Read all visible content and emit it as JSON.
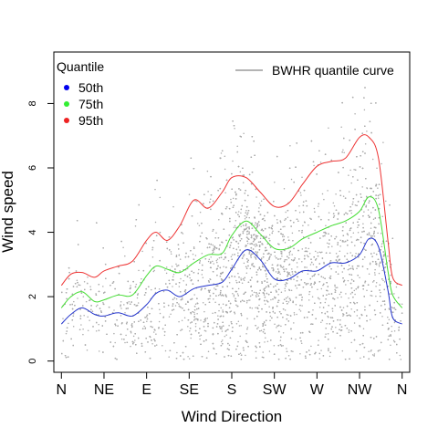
{
  "chart_data": {
    "type": "scatter",
    "title": "",
    "xlabel": "Wind Direction",
    "ylabel": "Wind speed",
    "x_tick_labels": [
      "N",
      "NE",
      "E",
      "SE",
      "S",
      "SW",
      "W",
      "NW",
      "N"
    ],
    "x_tick_positions": [
      0,
      45,
      90,
      135,
      180,
      225,
      270,
      315,
      360
    ],
    "xlim": [
      -8,
      368
    ],
    "y_ticks": [
      0,
      2,
      4,
      6,
      8
    ],
    "y_tick_labels": [
      "0",
      "2",
      "4",
      "6",
      "8"
    ],
    "ylim": [
      -0.35,
      9.6
    ],
    "grid": false,
    "scatter": {
      "color": "#aaaaaa",
      "description": "Dense cloud of individual observations (wind speed vs. direction)"
    },
    "legend_quantile": {
      "title": "Quantile",
      "placement": "top-left",
      "entries": [
        {
          "label": "50th",
          "color": "#0000ee"
        },
        {
          "label": "75th",
          "color": "#33ee33"
        },
        {
          "label": "95th",
          "color": "#ee2222"
        }
      ]
    },
    "legend_curve": {
      "label": "BWHR quantile curve",
      "color": "#888888",
      "placement": "top-right"
    },
    "series": [
      {
        "name": "50th",
        "color": "#2233cc",
        "x": [
          0,
          10,
          22,
          35,
          45,
          60,
          75,
          90,
          100,
          112,
          125,
          140,
          155,
          170,
          180,
          195,
          210,
          225,
          240,
          255,
          270,
          285,
          300,
          315,
          325,
          335,
          345,
          350,
          360
        ],
        "y": [
          1.15,
          1.45,
          1.65,
          1.45,
          1.4,
          1.5,
          1.4,
          1.75,
          2.1,
          2.2,
          2.0,
          2.25,
          2.35,
          2.45,
          2.85,
          3.45,
          3.15,
          2.55,
          2.55,
          2.8,
          2.8,
          3.05,
          3.05,
          3.3,
          3.8,
          3.55,
          2.2,
          1.35,
          1.15
        ]
      },
      {
        "name": "75th",
        "color": "#44dd33",
        "x": [
          0,
          10,
          22,
          35,
          45,
          60,
          75,
          90,
          100,
          112,
          125,
          140,
          155,
          170,
          180,
          195,
          210,
          225,
          240,
          255,
          270,
          285,
          300,
          315,
          325,
          335,
          345,
          350,
          360
        ],
        "y": [
          1.65,
          2.0,
          2.15,
          1.85,
          1.9,
          2.05,
          2.05,
          2.65,
          2.95,
          2.85,
          2.75,
          3.05,
          3.3,
          3.35,
          3.9,
          4.35,
          3.95,
          3.5,
          3.5,
          3.8,
          4.0,
          4.2,
          4.35,
          4.65,
          5.1,
          4.7,
          2.8,
          2.05,
          1.65
        ]
      },
      {
        "name": "95th",
        "color": "#ee3333",
        "x": [
          0,
          10,
          22,
          35,
          45,
          60,
          75,
          90,
          100,
          112,
          125,
          140,
          155,
          170,
          180,
          195,
          210,
          225,
          240,
          255,
          270,
          285,
          300,
          315,
          325,
          335,
          345,
          350,
          360
        ],
        "y": [
          2.35,
          2.7,
          2.75,
          2.6,
          2.8,
          2.95,
          3.1,
          3.75,
          4.0,
          3.75,
          4.2,
          5.0,
          4.75,
          5.25,
          5.7,
          5.7,
          5.25,
          4.8,
          4.9,
          5.5,
          6.05,
          6.2,
          6.3,
          6.95,
          6.95,
          6.3,
          3.75,
          2.6,
          2.35
        ]
      }
    ]
  }
}
